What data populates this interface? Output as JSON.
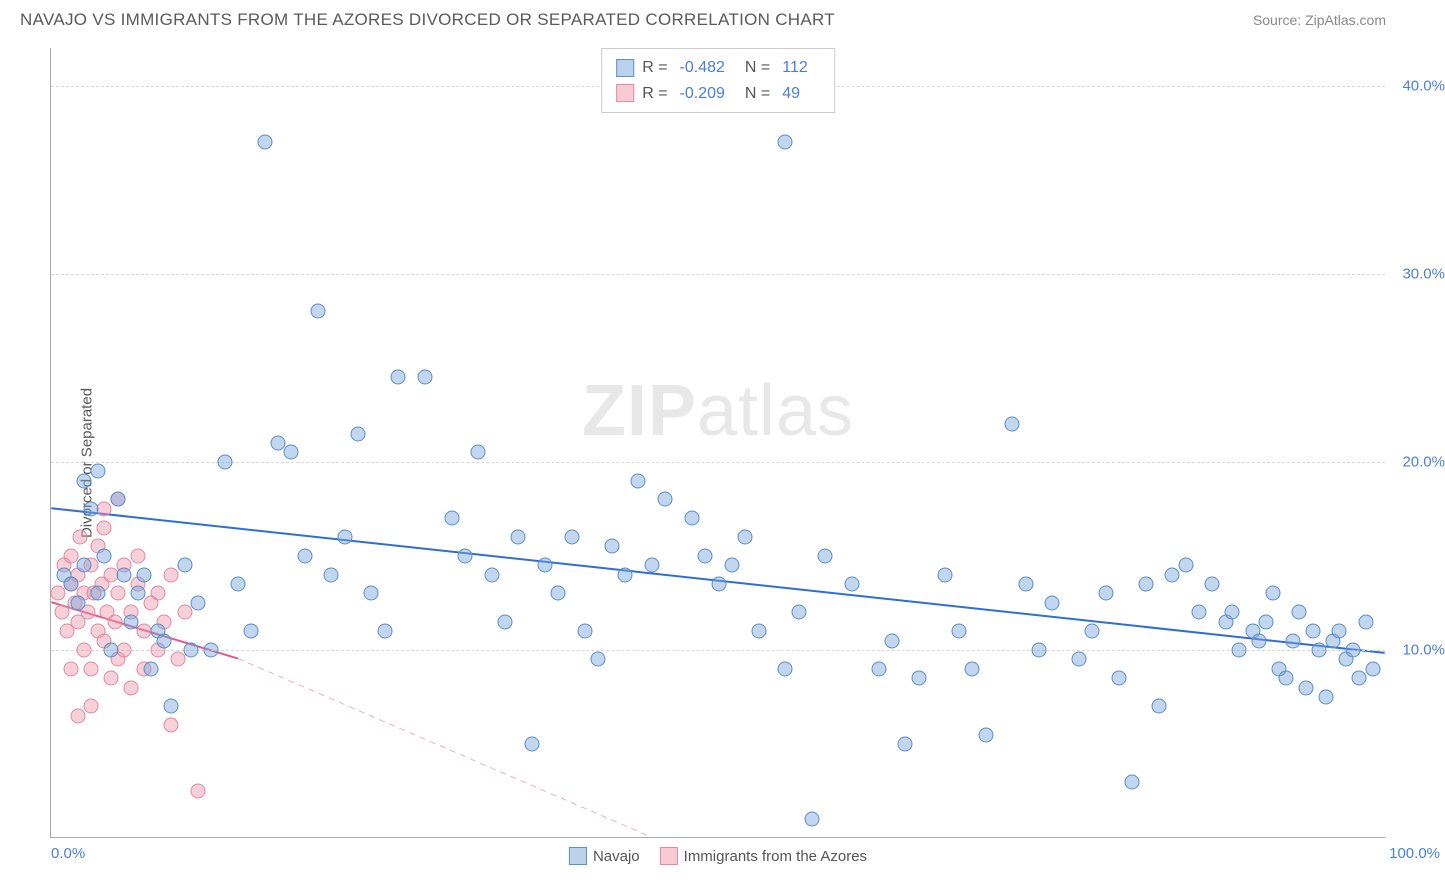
{
  "header": {
    "title": "NAVAJO VS IMMIGRANTS FROM THE AZORES DIVORCED OR SEPARATED CORRELATION CHART",
    "source_prefix": "Source: ",
    "source_link": "ZipAtlas.com"
  },
  "chart": {
    "type": "scatter",
    "y_axis_label": "Divorced or Separated",
    "xlim": [
      0,
      100
    ],
    "ylim": [
      0,
      42
    ],
    "y_ticks": [
      10,
      20,
      30,
      40
    ],
    "y_tick_labels": [
      "10.0%",
      "20.0%",
      "30.0%",
      "40.0%"
    ],
    "x_tick_left": "0.0%",
    "x_tick_right": "100.0%",
    "background_color": "#ffffff",
    "grid_color": "#d8d8d8",
    "marker_size": 15,
    "series": {
      "navajo": {
        "label": "Navajo",
        "color_fill": "rgba(120,165,220,0.45)",
        "color_stroke": "#5a8fc8",
        "R": "-0.482",
        "N": "112",
        "trend": {
          "x1": 0,
          "y1": 17.5,
          "x2": 100,
          "y2": 9.8,
          "color": "#2d6fd4",
          "width": 2,
          "dash": "none"
        },
        "points": [
          [
            1,
            14
          ],
          [
            1.5,
            13.5
          ],
          [
            2,
            12.5
          ],
          [
            2.5,
            19
          ],
          [
            2.5,
            14.5
          ],
          [
            3,
            17.5
          ],
          [
            3.5,
            19.5
          ],
          [
            3.5,
            13
          ],
          [
            4,
            15
          ],
          [
            4.5,
            10
          ],
          [
            5,
            18
          ],
          [
            5.5,
            14
          ],
          [
            6,
            11.5
          ],
          [
            6.5,
            13
          ],
          [
            7,
            14
          ],
          [
            7.5,
            9
          ],
          [
            8,
            11
          ],
          [
            8.5,
            10.5
          ],
          [
            9,
            7
          ],
          [
            10,
            14.5
          ],
          [
            10.5,
            10
          ],
          [
            11,
            12.5
          ],
          [
            12,
            10
          ],
          [
            13,
            20
          ],
          [
            14,
            13.5
          ],
          [
            15,
            11
          ],
          [
            16,
            37
          ],
          [
            17,
            21
          ],
          [
            18,
            20.5
          ],
          [
            19,
            15
          ],
          [
            20,
            28
          ],
          [
            21,
            14
          ],
          [
            22,
            16
          ],
          [
            23,
            21.5
          ],
          [
            24,
            13
          ],
          [
            25,
            11
          ],
          [
            26,
            24.5
          ],
          [
            28,
            24.5
          ],
          [
            30,
            17
          ],
          [
            31,
            15
          ],
          [
            32,
            20.5
          ],
          [
            33,
            14
          ],
          [
            34,
            11.5
          ],
          [
            35,
            16
          ],
          [
            36,
            5
          ],
          [
            37,
            14.5
          ],
          [
            38,
            13
          ],
          [
            39,
            16
          ],
          [
            40,
            11
          ],
          [
            41,
            9.5
          ],
          [
            42,
            15.5
          ],
          [
            43,
            14
          ],
          [
            44,
            19
          ],
          [
            45,
            14.5
          ],
          [
            46,
            18
          ],
          [
            48,
            17
          ],
          [
            49,
            15
          ],
          [
            50,
            13.5
          ],
          [
            51,
            14.5
          ],
          [
            52,
            16
          ],
          [
            53,
            11
          ],
          [
            55,
            9
          ],
          [
            55,
            37
          ],
          [
            56,
            12
          ],
          [
            57,
            1
          ],
          [
            58,
            15
          ],
          [
            60,
            13.5
          ],
          [
            62,
            9
          ],
          [
            63,
            10.5
          ],
          [
            64,
            5
          ],
          [
            65,
            8.5
          ],
          [
            67,
            14
          ],
          [
            68,
            11
          ],
          [
            69,
            9
          ],
          [
            70,
            5.5
          ],
          [
            72,
            22
          ],
          [
            73,
            13.5
          ],
          [
            74,
            10
          ],
          [
            75,
            12.5
          ],
          [
            77,
            9.5
          ],
          [
            78,
            11
          ],
          [
            79,
            13
          ],
          [
            80,
            8.5
          ],
          [
            81,
            3
          ],
          [
            82,
            13.5
          ],
          [
            83,
            7
          ],
          [
            84,
            14
          ],
          [
            85,
            14.5
          ],
          [
            86,
            12
          ],
          [
            87,
            13.5
          ],
          [
            88,
            11.5
          ],
          [
            88.5,
            12
          ],
          [
            89,
            10
          ],
          [
            90,
            11
          ],
          [
            90.5,
            10.5
          ],
          [
            91,
            11.5
          ],
          [
            91.5,
            13
          ],
          [
            92,
            9
          ],
          [
            92.5,
            8.5
          ],
          [
            93,
            10.5
          ],
          [
            93.5,
            12
          ],
          [
            94,
            8
          ],
          [
            94.5,
            11
          ],
          [
            95,
            10
          ],
          [
            95.5,
            7.5
          ],
          [
            96,
            10.5
          ],
          [
            96.5,
            11
          ],
          [
            97,
            9.5
          ],
          [
            97.5,
            10
          ],
          [
            98,
            8.5
          ],
          [
            98.5,
            11.5
          ],
          [
            99,
            9
          ]
        ]
      },
      "azores": {
        "label": "Immigrants from the Azores",
        "color_fill": "rgba(240,150,170,0.45)",
        "color_stroke": "#e08aa0",
        "R": "-0.209",
        "N": "49",
        "trend_solid": {
          "x1": 0,
          "y1": 12.5,
          "x2": 14,
          "y2": 9.5,
          "color": "#e05a8a",
          "width": 2
        },
        "trend_dashed": {
          "x1": 14,
          "y1": 9.5,
          "x2": 45,
          "y2": 0,
          "color": "#f0b0c0",
          "width": 1
        },
        "points": [
          [
            0.5,
            13
          ],
          [
            0.8,
            12
          ],
          [
            1,
            14.5
          ],
          [
            1.2,
            11
          ],
          [
            1.5,
            15
          ],
          [
            1.5,
            13.5
          ],
          [
            1.8,
            12.5
          ],
          [
            2,
            14
          ],
          [
            2,
            11.5
          ],
          [
            2.2,
            16
          ],
          [
            2.5,
            13
          ],
          [
            2.5,
            10
          ],
          [
            2.8,
            12
          ],
          [
            3,
            14.5
          ],
          [
            3,
            9
          ],
          [
            3.2,
            13
          ],
          [
            3.5,
            15.5
          ],
          [
            3.5,
            11
          ],
          [
            3.8,
            13.5
          ],
          [
            4,
            10.5
          ],
          [
            4,
            16.5
          ],
          [
            4.2,
            12
          ],
          [
            4.5,
            14
          ],
          [
            4.5,
            8.5
          ],
          [
            4.8,
            11.5
          ],
          [
            5,
            13
          ],
          [
            5,
            9.5
          ],
          [
            5.5,
            14.5
          ],
          [
            5.5,
            10
          ],
          [
            6,
            12
          ],
          [
            6,
            8
          ],
          [
            6.5,
            13.5
          ],
          [
            6.5,
            15
          ],
          [
            7,
            11
          ],
          [
            7,
            9
          ],
          [
            7.5,
            12.5
          ],
          [
            8,
            10
          ],
          [
            8,
            13
          ],
          [
            8.5,
            11.5
          ],
          [
            9,
            14
          ],
          [
            9,
            6
          ],
          [
            9.5,
            9.5
          ],
          [
            10,
            12
          ],
          [
            2,
            6.5
          ],
          [
            3,
            7
          ],
          [
            1.5,
            9
          ],
          [
            4,
            17.5
          ],
          [
            5,
            18
          ],
          [
            11,
            2.5
          ]
        ]
      }
    },
    "watermark": {
      "zip": "ZIP",
      "atlas": "atlas"
    }
  }
}
